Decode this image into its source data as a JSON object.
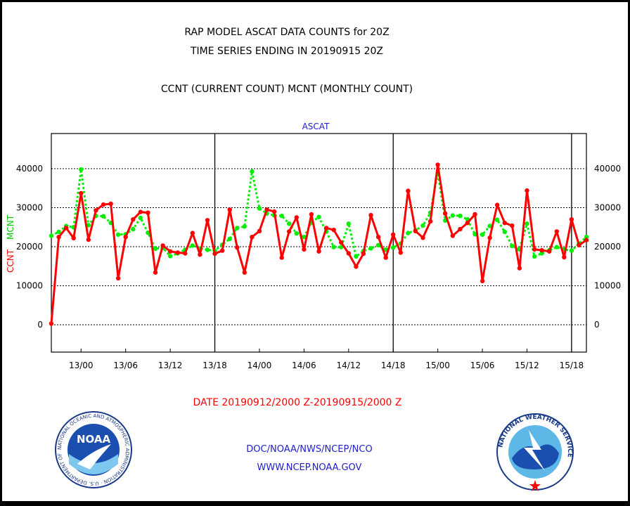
{
  "header": {
    "title_line1": "RAP MODEL ASCAT DATA COUNTS for 20Z",
    "title_line2": "TIME SERIES ENDING IN 20190915 20Z",
    "legend_text": "CCNT (CURRENT COUNT) MCNT (MONTHLY COUNT)"
  },
  "footer": {
    "date_range": "DATE 20190912/2000 Z-20190915/2000 Z",
    "org_line": "DOC/NOAA/NWS/NCEP/NCO",
    "url_line": "WWW.NCEP.NOAA.GOV"
  },
  "logos": {
    "noaa_text": "NOAA",
    "noaa_seal_text": "NATIONAL OCEANIC AND ATMOSPHERIC ADMINISTRATION · U.S. DEPARTMENT OF COMMERCE ·",
    "nws_seal_text": "NATIONAL WEATHER SERVICE"
  },
  "colors": {
    "ccnt": "#ff0000",
    "mcnt": "#00ee00",
    "title_blue": "#2020d0"
  },
  "chart_data": {
    "type": "line",
    "title": "ASCAT",
    "ylabel_parts": [
      "CCNT",
      "MCNT"
    ],
    "ylim": [
      -7000,
      49000
    ],
    "y_ticks": [
      0,
      10000,
      20000,
      30000,
      40000
    ],
    "x_ticks": [
      "13/00",
      "13/06",
      "13/12",
      "13/18",
      "14/00",
      "14/06",
      "14/12",
      "14/18",
      "15/00",
      "15/06",
      "15/12",
      "15/18"
    ],
    "series": [
      {
        "name": "CCNT",
        "style": "solid",
        "color": "#ff0000",
        "values": [
          300,
          22500,
          24800,
          22200,
          33700,
          21800,
          29300,
          30800,
          31000,
          11900,
          22500,
          27000,
          28900,
          28700,
          13400,
          20300,
          18800,
          18500,
          18300,
          23500,
          18000,
          26800,
          18200,
          19000,
          29500,
          19800,
          13400,
          22500,
          24000,
          29500,
          29000,
          17200,
          23900,
          27500,
          19300,
          28300,
          18800,
          24800,
          24300,
          21100,
          18300,
          14900,
          18200,
          28100,
          22500,
          17200,
          23100,
          18500,
          34300,
          24000,
          22300,
          26500,
          41000,
          28500,
          22800,
          24500,
          26100,
          28300,
          11200,
          22300,
          30700,
          26100,
          25400,
          14500,
          34400,
          19300,
          19100,
          18800,
          23900,
          17300,
          27000,
          20400,
          21700
        ],
        "note": "CCNT"
      },
      {
        "name": "MCNT",
        "style": "dotted",
        "color": "#00ee00",
        "values": [
          22800,
          23800,
          25300,
          25000,
          39800,
          25500,
          27900,
          27800,
          26100,
          23100,
          23200,
          24500,
          27400,
          23600,
          19500,
          19700,
          17600,
          18300,
          19200,
          20300,
          19500,
          19200,
          19000,
          20500,
          22000,
          24800,
          25200,
          39300,
          29800,
          28500,
          28000,
          27900,
          25900,
          23400,
          22500,
          26200,
          27600,
          23900,
          19900,
          19900,
          25900,
          17500,
          18900,
          19600,
          20400,
          19200,
          19800,
          20800,
          23500,
          24200,
          25400,
          28700,
          38900,
          26700,
          28000,
          27900,
          27000,
          23200,
          23100,
          25300,
          26900,
          23800,
          20200,
          19300,
          25900,
          17500,
          18300,
          19100,
          19900,
          19300,
          19000,
          20800,
          22500
        ],
        "note": "MCNT"
      }
    ]
  }
}
